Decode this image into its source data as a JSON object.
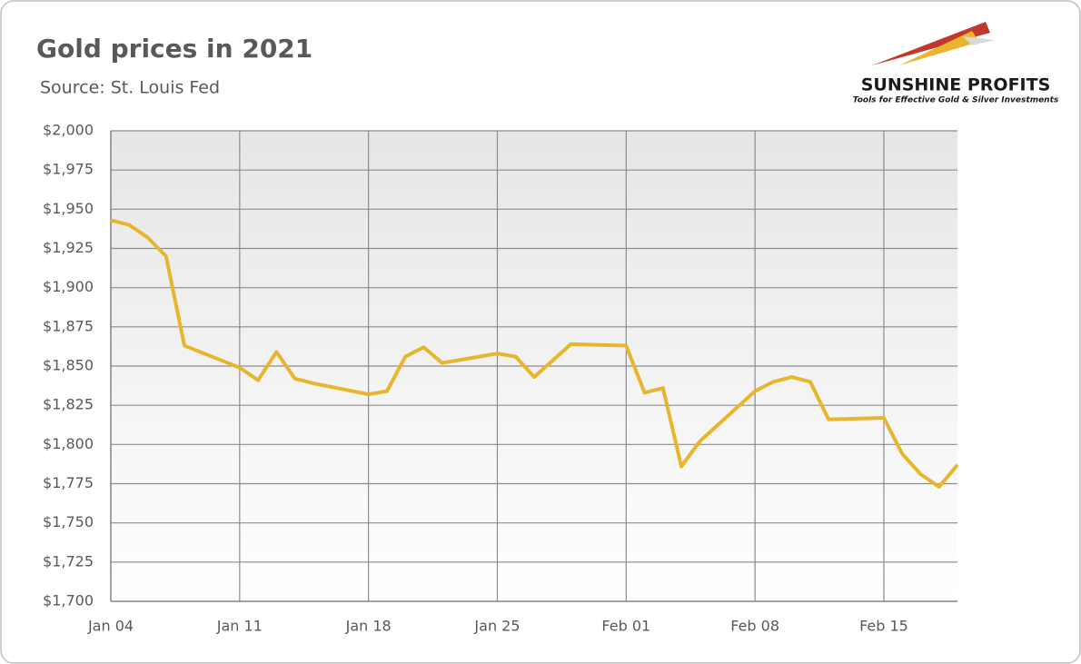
{
  "chart_data": {
    "type": "line",
    "title": "Gold prices in 2021",
    "subtitle": "Source: St. Louis Fed",
    "brand": "SUNSHINE PROFITS",
    "tagline": "Tools for Effective Gold & Silver Investments",
    "x": [
      0,
      1,
      2,
      3,
      4,
      7,
      8,
      9,
      10,
      11,
      14,
      15,
      16,
      17,
      18,
      21,
      22,
      23,
      25,
      28,
      29,
      30,
      31,
      32,
      35,
      36,
      37,
      38,
      39,
      42,
      43,
      44,
      45,
      46
    ],
    "series": [
      {
        "color": "#e8b52e",
        "values": [
          1943,
          1940,
          1932,
          1920,
          1863,
          1849,
          1841,
          1859,
          1842,
          1839,
          1832,
          1834,
          1856,
          1862,
          1852,
          1858,
          1856,
          1843,
          1864,
          1863,
          1833,
          1836,
          1786,
          1802,
          1834,
          1840,
          1843,
          1840,
          1816,
          1817,
          1794,
          1781,
          1773,
          1787
        ]
      }
    ],
    "xlim": [
      0,
      46
    ],
    "xticks": [
      {
        "value": 0,
        "label": "Jan 04"
      },
      {
        "value": 7,
        "label": "Jan 11"
      },
      {
        "value": 14,
        "label": "Jan 18"
      },
      {
        "value": 21,
        "label": "Jan 25"
      },
      {
        "value": 28,
        "label": "Feb 01"
      },
      {
        "value": 35,
        "label": "Feb 08"
      },
      {
        "value": 42,
        "label": "Feb 15"
      }
    ],
    "ylim": [
      1700,
      2000
    ],
    "yticks": [
      {
        "value": 1700,
        "label": "$1,700"
      },
      {
        "value": 1725,
        "label": "$1,725"
      },
      {
        "value": 1750,
        "label": "$1,750"
      },
      {
        "value": 1775,
        "label": "$1,775"
      },
      {
        "value": 1800,
        "label": "$1,800"
      },
      {
        "value": 1825,
        "label": "$1,825"
      },
      {
        "value": 1850,
        "label": "$1,850"
      },
      {
        "value": 1875,
        "label": "$1,875"
      },
      {
        "value": 1900,
        "label": "$1,900"
      },
      {
        "value": 1925,
        "label": "$1,925"
      },
      {
        "value": 1950,
        "label": "$1,950"
      },
      {
        "value": 1975,
        "label": "$1,975"
      },
      {
        "value": 2000,
        "label": "$2,000"
      }
    ],
    "grid": true
  }
}
